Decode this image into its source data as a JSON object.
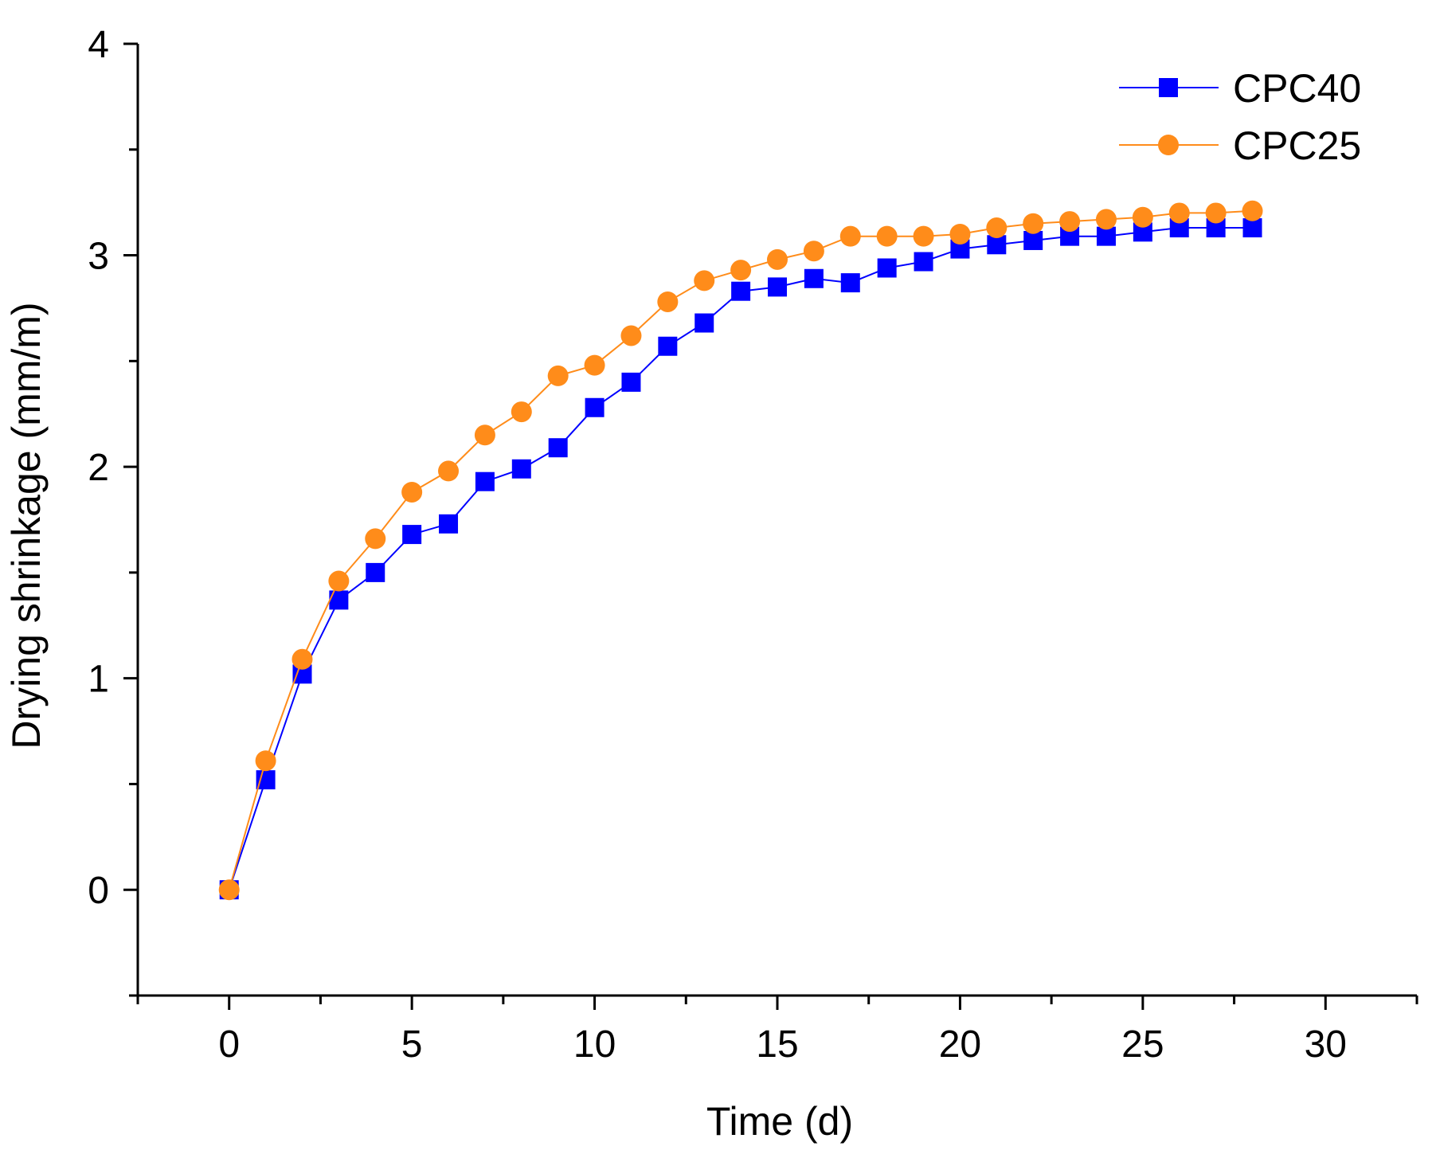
{
  "chart_data": {
    "type": "line",
    "title": "",
    "xlabel": "Time (d)",
    "ylabel": "Drying shrinkage (mm/m)",
    "xlim": [
      -2.5,
      32.5
    ],
    "ylim": [
      -0.5,
      4
    ],
    "xticks": [
      0,
      5,
      10,
      15,
      20,
      25,
      30
    ],
    "yticks": [
      0,
      1,
      2,
      3,
      4
    ],
    "x_minor_step": 2.5,
    "y_minor_step": 0.5,
    "grid": false,
    "legend_position": "top-right",
    "x": [
      0,
      1,
      2,
      3,
      4,
      5,
      6,
      7,
      8,
      9,
      10,
      11,
      12,
      13,
      14,
      15,
      16,
      17,
      18,
      19,
      20,
      21,
      22,
      23,
      24,
      25,
      26,
      27,
      28
    ],
    "series": [
      {
        "name": "CPC40",
        "color": "#0000ff",
        "marker": "square",
        "values": [
          0,
          0.52,
          1.02,
          1.37,
          1.5,
          1.68,
          1.73,
          1.93,
          1.99,
          2.09,
          2.28,
          2.4,
          2.57,
          2.68,
          2.83,
          2.85,
          2.89,
          2.87,
          2.94,
          2.97,
          3.03,
          3.05,
          3.07,
          3.09,
          3.09,
          3.11,
          3.13,
          3.13,
          3.13
        ]
      },
      {
        "name": "CPC25",
        "color": "#ff8c1a",
        "marker": "circle",
        "values": [
          0,
          0.61,
          1.09,
          1.46,
          1.66,
          1.88,
          1.98,
          2.15,
          2.26,
          2.43,
          2.48,
          2.62,
          2.78,
          2.88,
          2.93,
          2.98,
          3.02,
          3.09,
          3.09,
          3.09,
          3.1,
          3.13,
          3.15,
          3.16,
          3.17,
          3.18,
          3.2,
          3.2,
          3.21
        ]
      }
    ]
  }
}
